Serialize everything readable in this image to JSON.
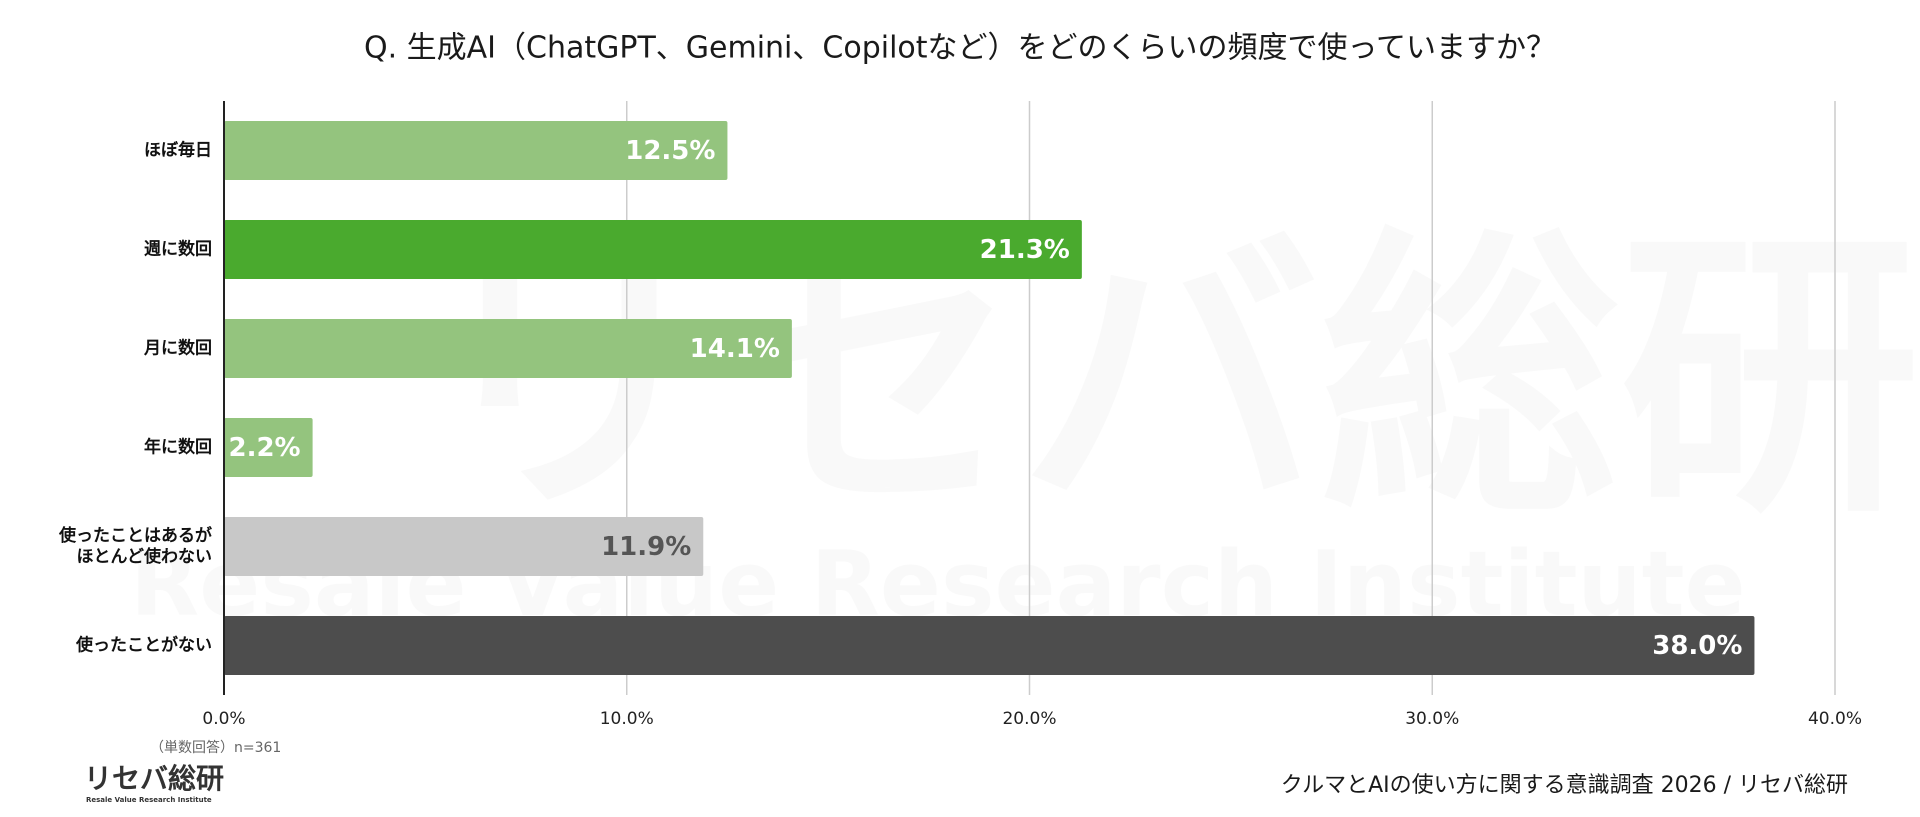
{
  "chart_data": {
    "type": "bar",
    "orientation": "horizontal",
    "title": "Q. 生成AI（ChatGPT、Gemini、Copilotなど）をどのくらいの頻度で使っていますか？",
    "categories": [
      "ほぼ毎日",
      "週に数回",
      "月に数回",
      "年に数回",
      [
        "使ったことはあるが",
        "ほとんど使わない"
      ],
      "使ったことがない"
    ],
    "values": [
      12.5,
      21.3,
      14.1,
      2.2,
      11.9,
      38.0
    ],
    "value_labels": [
      "12.5%",
      "21.3%",
      "14.1%",
      "2.2%",
      "11.9%",
      "38.0%"
    ],
    "colors": [
      "#94c47e",
      "#4aaa2e",
      "#94c47e",
      "#94c47e",
      "#c8c8c8",
      "#4d4d4d"
    ],
    "label_colors": [
      "#ffffff",
      "#ffffff",
      "#ffffff",
      "#ffffff",
      "#555555",
      "#ffffff"
    ],
    "xlim": [
      0,
      40
    ],
    "xticks": [
      {
        "value": 0,
        "label": "0.0%"
      },
      {
        "value": 10,
        "label": "10.0%"
      },
      {
        "value": 20,
        "label": "20.0%"
      },
      {
        "value": 30,
        "label": "30.0%"
      },
      {
        "value": 40,
        "label": "40.0%"
      }
    ],
    "grid": true,
    "note": "（単数回答）n=361",
    "source": "クルマとAIの使い方に関する意識調査 2026 / リセバ総研",
    "logo": "リセバ総研",
    "logo_subtitle": "Resale Value Research Institute"
  }
}
